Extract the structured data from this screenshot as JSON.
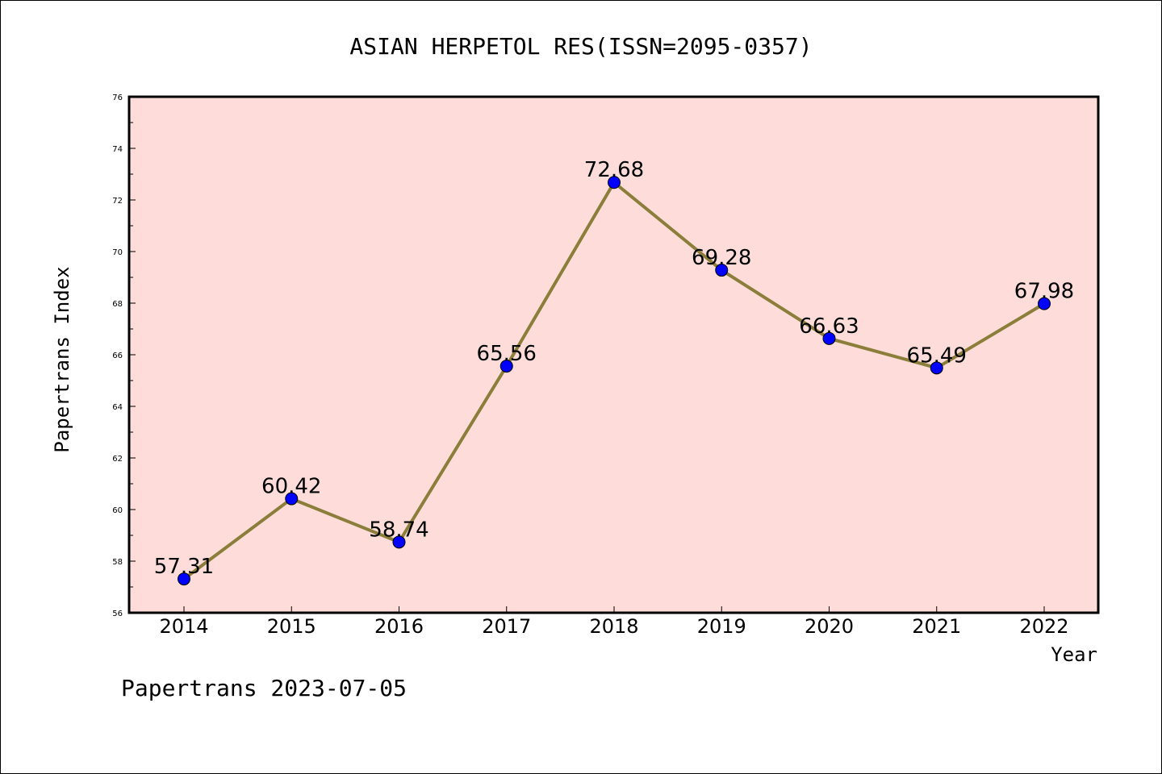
{
  "chart_data": {
    "type": "line",
    "title": "ASIAN HERPETOL RES(ISSN=2095-0357)",
    "xlabel": "Year",
    "ylabel": "Papertrans Index",
    "categories": [
      "2014",
      "2015",
      "2016",
      "2017",
      "2018",
      "2019",
      "2020",
      "2021",
      "2022"
    ],
    "series": [
      {
        "values": [
          57.31,
          60.42,
          58.74,
          65.56,
          72.68,
          69.28,
          66.63,
          65.49,
          67.98
        ]
      }
    ],
    "data_labels": [
      "57.31",
      "60.42",
      "58.74",
      "65.56",
      "72.68",
      "69.28",
      "66.63",
      "65.49",
      "67.98"
    ],
    "ylim": [
      56,
      76
    ],
    "yticks": [
      "56",
      "58",
      "60",
      "62",
      "64",
      "66",
      "68",
      "70",
      "72",
      "74",
      "76"
    ],
    "plot_background": "#fddcd9",
    "line_color": "#8b7d3a",
    "marker_color": "#0000ff",
    "grid": false,
    "footer": "Papertrans 2023-07-05"
  }
}
